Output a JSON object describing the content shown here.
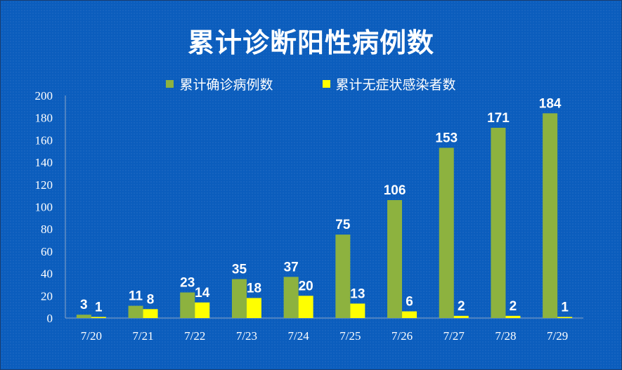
{
  "chart_data": {
    "type": "bar",
    "title": "累计诊断阳性病例数",
    "categories": [
      "7/20",
      "7/21",
      "7/22",
      "7/23",
      "7/24",
      "7/25",
      "7/26",
      "7/27",
      "7/28",
      "7/29"
    ],
    "series": [
      {
        "name": "累计确诊病例数",
        "color": "#8db23f",
        "values": [
          3,
          11,
          23,
          35,
          37,
          75,
          106,
          153,
          171,
          184
        ]
      },
      {
        "name": "累计无症状感染者数",
        "color": "#ffff00",
        "values": [
          1,
          8,
          14,
          18,
          20,
          13,
          6,
          2,
          2,
          1
        ]
      }
    ],
    "ylim": [
      0,
      200
    ],
    "yticks": [
      0,
      20,
      40,
      60,
      80,
      100,
      120,
      140,
      160,
      180,
      200
    ],
    "grid": false,
    "legend": "top",
    "data_labels": true,
    "background": "#0b5dbd"
  }
}
